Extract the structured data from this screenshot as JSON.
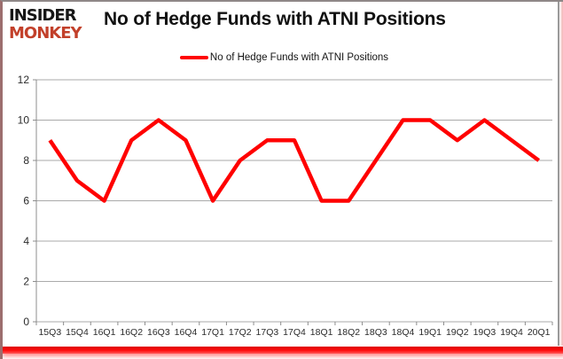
{
  "header": {
    "logo": {
      "line1": "INSIDER",
      "line2": "MONKEY"
    },
    "title": "No of Hedge Funds with ATNI Positions"
  },
  "legend": {
    "label": "No of Hedge Funds with ATNI Positions",
    "swatch_color": "#ff0000"
  },
  "chart_data": {
    "type": "line",
    "title": "No of Hedge Funds with ATNI Positions",
    "categories": [
      "15Q3",
      "15Q4",
      "16Q1",
      "16Q2",
      "16Q3",
      "16Q4",
      "17Q1",
      "17Q2",
      "17Q3",
      "17Q4",
      "18Q1",
      "18Q2",
      "18Q3",
      "18Q4",
      "19Q1",
      "19Q2",
      "19Q3",
      "19Q4",
      "20Q1"
    ],
    "series": [
      {
        "name": "No of Hedge Funds with ATNI Positions",
        "color": "#ff0000",
        "values": [
          9,
          7,
          6,
          9,
          10,
          9,
          6,
          8,
          9,
          9,
          6,
          6,
          8,
          10,
          10,
          9,
          10,
          9,
          8
        ]
      }
    ],
    "xlabel": "",
    "ylabel": "",
    "ylim": [
      0,
      12
    ],
    "yticks": [
      0,
      2,
      4,
      6,
      8,
      10,
      12
    ],
    "grid": "horizontal",
    "legend_position": "top-center"
  },
  "colors": {
    "line": "#ff0000",
    "gridline": "#aaaaaa",
    "axis": "#8c8c8c",
    "tick_label": "#2b2b2b",
    "logo_red": "#c2402a",
    "bottom_bar": "#ff0000"
  }
}
